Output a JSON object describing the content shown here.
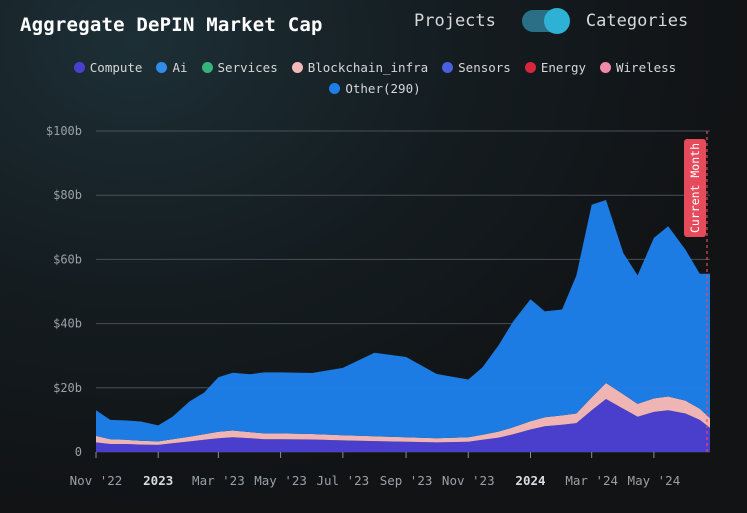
{
  "header": {
    "title": "Aggregate DePIN Market Cap"
  },
  "toggle": {
    "left_label": "Projects",
    "right_label": "Categories",
    "selected": "Categories"
  },
  "legend": [
    {
      "label": "Compute",
      "color": "#4b3fd0"
    },
    {
      "label": "Ai",
      "color": "#2f8de8"
    },
    {
      "label": "Services",
      "color": "#35b37a"
    },
    {
      "label": "Blockchain_infra",
      "color": "#f4b8b8"
    },
    {
      "label": "Sensors",
      "color": "#4a5fe0"
    },
    {
      "label": "Energy",
      "color": "#d8263e"
    },
    {
      "label": "Wireless",
      "color": "#f08aa8"
    },
    {
      "label": "Other(290)",
      "color": "#1e7ee8"
    }
  ],
  "marker": {
    "label": "Current Month",
    "color": "#e64b5c"
  },
  "chart_data": {
    "type": "area",
    "title": "Aggregate DePIN Market Cap",
    "xlabel": "",
    "ylabel": "",
    "ylim": [
      0,
      100
    ],
    "y_ticks": [
      "0",
      "$20b",
      "$40b",
      "$60b",
      "$80b",
      "$100b"
    ],
    "x_ticks": [
      "Nov '22",
      "2023",
      "Mar '23",
      "May '23",
      "Jul '23",
      "Sep '23",
      "Nov '23",
      "2024",
      "Mar '24",
      "May '24"
    ],
    "x_start": "2022-11-01",
    "x_end": "2024-06-25",
    "grid": true,
    "series": [
      {
        "name": "Compute",
        "color": "#4b3fd0",
        "x": [
          "2022-11-01",
          "2022-11-15",
          "2022-12-01",
          "2022-12-15",
          "2023-01-01",
          "2023-01-15",
          "2023-02-01",
          "2023-02-15",
          "2023-03-01",
          "2023-03-15",
          "2023-04-01",
          "2023-04-15",
          "2023-05-01",
          "2023-06-01",
          "2023-07-01",
          "2023-08-01",
          "2023-09-01",
          "2023-10-01",
          "2023-11-01",
          "2023-11-15",
          "2023-12-01",
          "2023-12-15",
          "2024-01-01",
          "2024-01-15",
          "2024-02-01",
          "2024-02-15",
          "2024-03-01",
          "2024-03-15",
          "2024-04-01",
          "2024-04-15",
          "2024-05-01",
          "2024-05-15",
          "2024-06-01",
          "2024-06-15",
          "2024-06-25"
        ],
        "values": [
          3,
          2.5,
          2.5,
          2.3,
          2.2,
          2.7,
          3.3,
          3.8,
          4.3,
          4.6,
          4.3,
          4.0,
          4.0,
          3.9,
          3.6,
          3.4,
          3.2,
          3.0,
          3.2,
          3.8,
          4.5,
          5.5,
          7.0,
          8.0,
          8.5,
          9.0,
          13.0,
          16.5,
          13.5,
          11.0,
          12.5,
          13.0,
          12.0,
          10.0,
          7.5
        ]
      },
      {
        "name": "Blockchain_infra",
        "color": "#f4b8b8",
        "x": [
          "2022-11-01",
          "2022-11-15",
          "2022-12-01",
          "2022-12-15",
          "2023-01-01",
          "2023-01-15",
          "2023-02-01",
          "2023-02-15",
          "2023-03-01",
          "2023-03-15",
          "2023-04-01",
          "2023-04-15",
          "2023-05-01",
          "2023-06-01",
          "2023-07-01",
          "2023-08-01",
          "2023-09-01",
          "2023-10-01",
          "2023-11-01",
          "2023-11-15",
          "2023-12-01",
          "2023-12-15",
          "2024-01-01",
          "2024-01-15",
          "2024-02-01",
          "2024-02-15",
          "2024-03-01",
          "2024-03-15",
          "2024-04-01",
          "2024-04-15",
          "2024-05-01",
          "2024-05-15",
          "2024-06-01",
          "2024-06-15",
          "2024-06-25"
        ],
        "values": [
          2,
          1.5,
          1.3,
          1.2,
          1.1,
          1.3,
          1.5,
          1.7,
          2.0,
          2.1,
          1.9,
          1.8,
          1.8,
          1.7,
          1.6,
          1.5,
          1.4,
          1.3,
          1.4,
          1.6,
          1.9,
          2.2,
          2.6,
          2.8,
          2.9,
          3.0,
          4.0,
          5.0,
          4.5,
          4.0,
          4.2,
          4.3,
          4.0,
          3.5,
          3.0
        ]
      },
      {
        "name": "Other(290)",
        "color": "#1e7ee8",
        "x": [
          "2022-11-01",
          "2022-11-15",
          "2022-12-01",
          "2022-12-15",
          "2023-01-01",
          "2023-01-15",
          "2023-02-01",
          "2023-02-15",
          "2023-03-01",
          "2023-03-15",
          "2023-04-01",
          "2023-04-15",
          "2023-05-01",
          "2023-06-01",
          "2023-07-01",
          "2023-08-01",
          "2023-09-01",
          "2023-10-01",
          "2023-11-01",
          "2023-11-15",
          "2023-12-01",
          "2023-12-15",
          "2024-01-01",
          "2024-01-15",
          "2024-02-01",
          "2024-02-15",
          "2024-03-01",
          "2024-03-15",
          "2024-04-01",
          "2024-04-15",
          "2024-05-01",
          "2024-05-15",
          "2024-06-01",
          "2024-06-15",
          "2024-06-25"
        ],
        "values": [
          8,
          6,
          6,
          6,
          5,
          7,
          11,
          13,
          17,
          18,
          18,
          19,
          19,
          19,
          21,
          26,
          25,
          20,
          18,
          21,
          27,
          33,
          38,
          33,
          33,
          43,
          60,
          57,
          44,
          40,
          50,
          53,
          47,
          42,
          45
        ]
      }
    ]
  }
}
